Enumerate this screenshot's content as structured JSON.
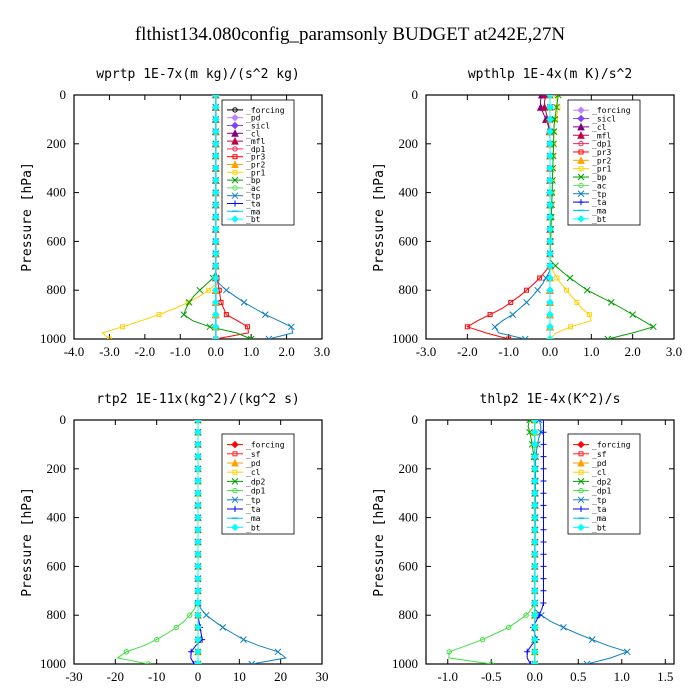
{
  "figure_title": "flthist134.080config_paramsonly  BUDGET at242E,27N",
  "chart_data": [
    {
      "type": "line",
      "title": "wprtp  1E-7x(m kg)/(s^2 kg)",
      "ylabel": "Pressure [hPa]",
      "xlim": [
        -4.0,
        3.0
      ],
      "ylim": [
        1000,
        0
      ],
      "xticks": [
        "-4.0",
        "-3.0",
        "-2.0",
        "-1.0",
        "0.0",
        "1.0",
        "2.0",
        "3.0"
      ],
      "yticks": [
        "0",
        "200",
        "400",
        "600",
        "800",
        "1000"
      ],
      "legend_position": "top-right",
      "series": [
        {
          "name": "_forcing",
          "color": "#000000",
          "marker": "circle",
          "p": [
            0,
            1000
          ],
          "x": [
            0,
            0
          ]
        },
        {
          "name": "_pd",
          "color": "#c080ff",
          "marker": "diamond",
          "p": [
            0,
            1000
          ],
          "x": [
            0,
            0
          ]
        },
        {
          "name": "_sicl",
          "color": "#8040ff",
          "marker": "diamond",
          "p": [
            0,
            1000
          ],
          "x": [
            0,
            0
          ]
        },
        {
          "name": "_cl",
          "color": "#800080",
          "marker": "triangle",
          "p": [
            0,
            1000
          ],
          "x": [
            0,
            0
          ]
        },
        {
          "name": "_mfl",
          "color": "#c00040",
          "marker": "triangle",
          "p": [
            0,
            1000
          ],
          "x": [
            0,
            0
          ]
        },
        {
          "name": "_dp1",
          "color": "#ff2060",
          "marker": "circle",
          "p": [
            0,
            1000
          ],
          "x": [
            0,
            0
          ]
        },
        {
          "name": "_pr3",
          "color": "#ff0000",
          "marker": "square",
          "p": [
            720,
            760,
            800,
            850,
            900,
            940,
            970,
            990,
            1000
          ],
          "x": [
            0,
            0.05,
            0.1,
            0.15,
            0.3,
            0.8,
            1.1,
            0.4,
            0
          ]
        },
        {
          "name": "_pr2",
          "color": "#ffa000",
          "marker": "triangle",
          "p": [
            0,
            1000
          ],
          "x": [
            0,
            0
          ]
        },
        {
          "name": "_pr1",
          "color": "#ffd000",
          "marker": "square",
          "p": [
            780,
            820,
            860,
            900,
            940,
            975,
            1000
          ],
          "x": [
            0,
            -0.4,
            -0.9,
            -1.6,
            -2.4,
            -3.2,
            -3.0
          ]
        },
        {
          "name": "_bp",
          "color": "#00a000",
          "marker": "cross",
          "p": [
            740,
            780,
            820,
            860,
            900,
            940,
            970,
            1000
          ],
          "x": [
            0,
            -0.3,
            -0.6,
            -0.8,
            -0.9,
            -0.5,
            0.5,
            1.0
          ]
        },
        {
          "name": "_ac",
          "color": "#60e060",
          "marker": "circle",
          "p": [
            0,
            1000
          ],
          "x": [
            0,
            0
          ]
        },
        {
          "name": "_tp",
          "color": "#1080c0",
          "marker": "cross",
          "p": [
            760,
            800,
            850,
            900,
            940,
            970,
            990
          ],
          "x": [
            0,
            0.3,
            0.8,
            1.4,
            2.0,
            2.4,
            1.5
          ]
        },
        {
          "name": "_ta",
          "color": "#0000ff",
          "marker": "plus",
          "p": [
            0,
            1000
          ],
          "x": [
            0,
            0
          ]
        },
        {
          "name": "_ma",
          "color": "#00c0ff",
          "marker": "dash",
          "p": [
            0,
            1000
          ],
          "x": [
            0,
            0
          ]
        },
        {
          "name": "_bt",
          "color": "#00ffff",
          "marker": "diamond",
          "p": [
            0,
            1000
          ],
          "x": [
            0,
            0
          ]
        }
      ]
    },
    {
      "type": "line",
      "title": "wpthlp  1E-4x(m K)/s^2",
      "ylabel": "Pressure [hPa]",
      "xlim": [
        -3.0,
        3.0
      ],
      "ylim": [
        1000,
        0
      ],
      "xticks": [
        "-3.0",
        "-2.0",
        "-1.0",
        "0.0",
        "1.0",
        "2.0",
        "3.0"
      ],
      "yticks": [
        "0",
        "200",
        "400",
        "600",
        "800",
        "1000"
      ],
      "legend_position": "top-right",
      "series": [
        {
          "name": "_forcing",
          "color": "#c080ff",
          "marker": "diamond",
          "p": [
            0,
            1000
          ],
          "x": [
            0,
            0
          ]
        },
        {
          "name": "_sicl",
          "color": "#8040ff",
          "marker": "diamond",
          "p": [
            0,
            1000
          ],
          "x": [
            0,
            0
          ]
        },
        {
          "name": "_cl",
          "color": "#800080",
          "marker": "triangle",
          "p": [
            0,
            40,
            80,
            120,
            160,
            200,
            240,
            1000
          ],
          "x": [
            -0.2,
            -0.25,
            -0.15,
            -0.05,
            0,
            0,
            0,
            0
          ]
        },
        {
          "name": "_mfl",
          "color": "#c00040",
          "marker": "triangle",
          "p": [
            0,
            40,
            80,
            120,
            160,
            200,
            1000
          ],
          "x": [
            -0.1,
            -0.15,
            -0.08,
            -0.04,
            0,
            0,
            0
          ]
        },
        {
          "name": "_dp1",
          "color": "#ff2060",
          "marker": "circle",
          "p": [
            0,
            1000
          ],
          "x": [
            0,
            0
          ]
        },
        {
          "name": "_pr3",
          "color": "#ff0000",
          "marker": "square",
          "p": [
            700,
            760,
            820,
            880,
            920,
            960,
            990
          ],
          "x": [
            0,
            -0.3,
            -0.7,
            -1.2,
            -1.7,
            -2.1,
            -1.0
          ]
        },
        {
          "name": "_pr2",
          "color": "#ffa000",
          "marker": "triangle",
          "p": [
            0,
            1000
          ],
          "x": [
            0,
            0
          ]
        },
        {
          "name": "_pr1",
          "color": "#ffd000",
          "marker": "square",
          "p": [
            0,
            60,
            120,
            700,
            760,
            820,
            880,
            920,
            960,
            990
          ],
          "x": [
            0.15,
            0.2,
            0.1,
            0,
            0.2,
            0.5,
            0.8,
            1.1,
            0.3,
            0
          ]
        },
        {
          "name": "_bp",
          "color": "#00a000",
          "marker": "cross",
          "p": [
            0,
            60,
            120,
            680,
            740,
            800,
            860,
            920,
            960,
            990
          ],
          "x": [
            0.2,
            0.15,
            0.1,
            0,
            0.4,
            0.9,
            1.6,
            2.2,
            2.6,
            1.4
          ]
        },
        {
          "name": "_ac",
          "color": "#60e060",
          "marker": "circle",
          "p": [
            0,
            1000
          ],
          "x": [
            0,
            0
          ]
        },
        {
          "name": "_tp",
          "color": "#1080c0",
          "marker": "cross",
          "p": [
            720,
            780,
            840,
            900,
            940,
            970,
            995
          ],
          "x": [
            0,
            -0.2,
            -0.5,
            -0.9,
            -1.3,
            -1.4,
            -0.6
          ]
        },
        {
          "name": "_ta",
          "color": "#0000ff",
          "marker": "plus",
          "p": [
            0,
            1000
          ],
          "x": [
            0,
            0
          ]
        },
        {
          "name": "_ma",
          "color": "#00c0ff",
          "marker": "dash",
          "p": [
            0,
            1000
          ],
          "x": [
            0,
            0
          ]
        },
        {
          "name": "_bt",
          "color": "#00ffff",
          "marker": "diamond",
          "p": [
            0,
            1000
          ],
          "x": [
            0,
            0
          ]
        }
      ]
    },
    {
      "type": "line",
      "title": "rtp2  1E-11x(kg^2)/(kg^2 s)",
      "ylabel": "Pressure [hPa]",
      "xlim": [
        -30,
        30
      ],
      "ylim": [
        1000,
        0
      ],
      "xticks": [
        "-30",
        "-20",
        "-10",
        "0",
        "10",
        "20",
        "30"
      ],
      "yticks": [
        "0",
        "200",
        "400",
        "600",
        "800",
        "1000"
      ],
      "legend_position": "top-right",
      "series": [
        {
          "name": "_forcing",
          "color": "#ff0000",
          "marker": "diamond",
          "p": [
            0,
            1000
          ],
          "x": [
            0,
            0
          ]
        },
        {
          "name": "_sf",
          "color": "#ff2020",
          "marker": "square",
          "p": [
            0,
            1000
          ],
          "x": [
            0,
            0
          ]
        },
        {
          "name": "_pd",
          "color": "#ffa000",
          "marker": "triangle",
          "p": [
            0,
            1000
          ],
          "x": [
            0,
            0
          ]
        },
        {
          "name": "_cl",
          "color": "#ffd000",
          "marker": "square",
          "p": [
            0,
            1000
          ],
          "x": [
            0,
            0
          ]
        },
        {
          "name": "_dp2",
          "color": "#00a000",
          "marker": "cross",
          "p": [
            0,
            1000
          ],
          "x": [
            0,
            0
          ]
        },
        {
          "name": "_dp1",
          "color": "#40e040",
          "marker": "circle",
          "p": [
            740,
            780,
            820,
            860,
            900,
            940,
            970,
            990
          ],
          "x": [
            0,
            -1,
            -3,
            -6,
            -10,
            -15,
            -22,
            -12
          ]
        },
        {
          "name": "_tp",
          "color": "#1080c0",
          "marker": "cross",
          "p": [
            760,
            800,
            850,
            900,
            940,
            970,
            990
          ],
          "x": [
            0,
            2,
            6,
            11,
            17,
            24,
            13
          ]
        },
        {
          "name": "_ta",
          "color": "#0000ff",
          "marker": "plus",
          "p": [
            800,
            850,
            900,
            940,
            970,
            990
          ],
          "x": [
            0,
            0.5,
            1.0,
            -1.5,
            -2.0,
            -1.0
          ]
        },
        {
          "name": "_ma",
          "color": "#00c0ff",
          "marker": "dash",
          "p": [
            0,
            1000
          ],
          "x": [
            0,
            0
          ]
        },
        {
          "name": "_bt",
          "color": "#00ffff",
          "marker": "diamond",
          "p": [
            0,
            1000
          ],
          "x": [
            0,
            0
          ]
        }
      ]
    },
    {
      "type": "line",
      "title": "thlp2  1E-4x(K^2)/s",
      "ylabel": "Pressure [hPa]",
      "xlim": [
        -1.25,
        1.6
      ],
      "ylim": [
        1000,
        0
      ],
      "xticks": [
        "-1.0",
        "-0.5",
        "0.0",
        "0.5",
        "1.0",
        "1.5"
      ],
      "xtick_values": [
        -1.0,
        -0.5,
        0.0,
        0.5,
        1.0,
        1.5
      ],
      "yticks": [
        "0",
        "200",
        "400",
        "600",
        "800",
        "1000"
      ],
      "legend_position": "top-right",
      "series": [
        {
          "name": "_forcing",
          "color": "#ff0000",
          "marker": "diamond",
          "p": [
            0,
            1000
          ],
          "x": [
            0,
            0
          ]
        },
        {
          "name": "_sf",
          "color": "#ff2020",
          "marker": "square",
          "p": [
            0,
            1000
          ],
          "x": [
            0,
            0
          ]
        },
        {
          "name": "_pd",
          "color": "#ffa000",
          "marker": "triangle",
          "p": [
            0,
            1000
          ],
          "x": [
            0,
            0
          ]
        },
        {
          "name": "_cl",
          "color": "#ffd000",
          "marker": "square",
          "p": [
            0,
            1000
          ],
          "x": [
            0,
            0
          ]
        },
        {
          "name": "_dp2",
          "color": "#00a000",
          "marker": "cross",
          "p": [
            0,
            30,
            60,
            100,
            150,
            200,
            1000
          ],
          "x": [
            -0.06,
            -0.08,
            -0.05,
            -0.03,
            -0.01,
            0,
            0
          ]
        },
        {
          "name": "_dp1",
          "color": "#40e040",
          "marker": "circle",
          "p": [
            760,
            800,
            850,
            900,
            940,
            970,
            990
          ],
          "x": [
            0,
            -0.1,
            -0.3,
            -0.6,
            -0.9,
            -1.15,
            -0.5
          ]
        },
        {
          "name": "_tp",
          "color": "#1080c0",
          "marker": "cross",
          "p": [
            0,
            40,
            80,
            150,
            780,
            820,
            870,
            920,
            960,
            990
          ],
          "x": [
            0.05,
            0.08,
            0.04,
            0.01,
            0,
            0.15,
            0.45,
            0.8,
            1.15,
            0.6
          ]
        },
        {
          "name": "_ta",
          "color": "#0000ff",
          "marker": "plus",
          "p": [
            760,
            800,
            850,
            900,
            940,
            970,
            990
          ],
          "x": [
            0.1,
            0.05,
            -0.02,
            0.02,
            -0.08,
            -0.1,
            -0.05
          ]
        },
        {
          "name": "_ma",
          "color": "#00c0ff",
          "marker": "dash",
          "p": [
            0,
            1000
          ],
          "x": [
            0,
            0
          ]
        },
        {
          "name": "_bt",
          "color": "#00ffff",
          "marker": "diamond",
          "p": [
            0,
            1000
          ],
          "x": [
            0,
            0
          ]
        }
      ]
    }
  ]
}
